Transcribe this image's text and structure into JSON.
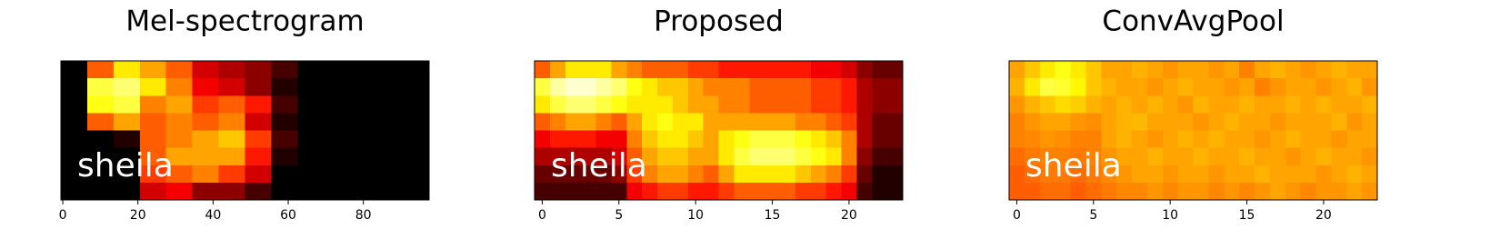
{
  "chart_data": [
    {
      "type": "heatmap",
      "title": "Mel-spectrogram",
      "annotation": "sheila",
      "colormap": "hot",
      "xlim": [
        -0.5,
        97.5
      ],
      "xticks": [
        0,
        20,
        40,
        60,
        80
      ],
      "values": [
        [
          0,
          0.5,
          0.7,
          0.6,
          0.5,
          0.3,
          0.25,
          0.2,
          0.1,
          0,
          0,
          0,
          0,
          0
        ],
        [
          0,
          0.8,
          0.85,
          0.7,
          0.55,
          0.35,
          0.3,
          0.2,
          0.05,
          0,
          0,
          0,
          0,
          0
        ],
        [
          0,
          0.75,
          0.8,
          0.55,
          0.6,
          0.45,
          0.5,
          0.4,
          0.1,
          0,
          0,
          0,
          0,
          0
        ],
        [
          0,
          0.5,
          0.6,
          0.5,
          0.55,
          0.5,
          0.55,
          0.3,
          0.05,
          0,
          0,
          0,
          0,
          0
        ],
        [
          0,
          0,
          0.05,
          0.5,
          0.55,
          0.6,
          0.65,
          0.45,
          0.1,
          0,
          0,
          0,
          0,
          0
        ],
        [
          0,
          0,
          0,
          0.5,
          0.6,
          0.6,
          0.6,
          0.4,
          0.05,
          0,
          0,
          0,
          0,
          0
        ],
        [
          0,
          0,
          0,
          0.45,
          0.5,
          0.55,
          0.45,
          0.3,
          0,
          0,
          0,
          0,
          0,
          0
        ],
        [
          0,
          0,
          0,
          0.3,
          0.35,
          0.2,
          0.2,
          0.1,
          0,
          0,
          0,
          0,
          0,
          0
        ]
      ]
    },
    {
      "type": "heatmap",
      "title": "Proposed",
      "annotation": "sheila",
      "colormap": "hot",
      "xlim": [
        -0.5,
        23.5
      ],
      "xticks": [
        0,
        5,
        10,
        15,
        20
      ],
      "values": [
        [
          0.5,
          0.6,
          0.7,
          0.7,
          0.7,
          0.6,
          0.55,
          0.5,
          0.5,
          0.5,
          0.45,
          0.45,
          0.4,
          0.4,
          0.4,
          0.4,
          0.4,
          0.4,
          0.35,
          0.35,
          0.3,
          0.2,
          0.15,
          0.15
        ],
        [
          0.8,
          0.9,
          0.95,
          0.95,
          0.9,
          0.85,
          0.75,
          0.7,
          0.65,
          0.65,
          0.6,
          0.55,
          0.55,
          0.55,
          0.5,
          0.5,
          0.5,
          0.5,
          0.45,
          0.45,
          0.4,
          0.25,
          0.2,
          0.2
        ],
        [
          0.7,
          0.8,
          0.85,
          0.85,
          0.8,
          0.75,
          0.7,
          0.7,
          0.7,
          0.65,
          0.6,
          0.6,
          0.55,
          0.55,
          0.5,
          0.5,
          0.5,
          0.5,
          0.45,
          0.45,
          0.4,
          0.25,
          0.2,
          0.2
        ],
        [
          0.5,
          0.55,
          0.6,
          0.6,
          0.55,
          0.5,
          0.6,
          0.7,
          0.75,
          0.7,
          0.7,
          0.6,
          0.6,
          0.6,
          0.6,
          0.6,
          0.6,
          0.55,
          0.55,
          0.5,
          0.45,
          0.25,
          0.15,
          0.15
        ],
        [
          0.35,
          0.4,
          0.4,
          0.4,
          0.35,
          0.35,
          0.55,
          0.65,
          0.7,
          0.7,
          0.65,
          0.6,
          0.7,
          0.75,
          0.8,
          0.8,
          0.8,
          0.75,
          0.7,
          0.65,
          0.55,
          0.25,
          0.15,
          0.15
        ],
        [
          0.25,
          0.25,
          0.25,
          0.25,
          0.25,
          0.3,
          0.5,
          0.6,
          0.65,
          0.65,
          0.6,
          0.6,
          0.7,
          0.8,
          0.85,
          0.85,
          0.85,
          0.8,
          0.75,
          0.7,
          0.55,
          0.2,
          0.1,
          0.1
        ],
        [
          0.15,
          0.15,
          0.15,
          0.15,
          0.15,
          0.2,
          0.45,
          0.55,
          0.6,
          0.6,
          0.55,
          0.5,
          0.6,
          0.7,
          0.7,
          0.7,
          0.7,
          0.65,
          0.6,
          0.55,
          0.45,
          0.15,
          0.05,
          0.05
        ],
        [
          0.1,
          0.1,
          0.1,
          0.1,
          0.1,
          0.1,
          0.35,
          0.4,
          0.45,
          0.45,
          0.4,
          0.4,
          0.45,
          0.5,
          0.5,
          0.5,
          0.5,
          0.45,
          0.45,
          0.4,
          0.35,
          0.1,
          0.05,
          0.05
        ]
      ]
    },
    {
      "type": "heatmap",
      "title": "ConvAvgPool",
      "annotation": "sheila",
      "colormap": "hot",
      "xlim": [
        -0.5,
        23.5
      ],
      "xticks": [
        0,
        5,
        10,
        15,
        20
      ],
      "values": [
        [
          0.6,
          0.65,
          0.7,
          0.75,
          0.7,
          0.65,
          0.6,
          0.6,
          0.62,
          0.6,
          0.58,
          0.6,
          0.6,
          0.58,
          0.6,
          0.55,
          0.6,
          0.62,
          0.6,
          0.58,
          0.6,
          0.62,
          0.6,
          0.6
        ],
        [
          0.62,
          0.7,
          0.8,
          0.78,
          0.72,
          0.65,
          0.62,
          0.6,
          0.6,
          0.58,
          0.6,
          0.62,
          0.6,
          0.6,
          0.58,
          0.6,
          0.55,
          0.58,
          0.6,
          0.6,
          0.58,
          0.6,
          0.62,
          0.58
        ],
        [
          0.58,
          0.62,
          0.65,
          0.68,
          0.66,
          0.62,
          0.6,
          0.62,
          0.6,
          0.62,
          0.6,
          0.58,
          0.62,
          0.6,
          0.6,
          0.62,
          0.6,
          0.6,
          0.62,
          0.6,
          0.62,
          0.6,
          0.6,
          0.62
        ],
        [
          0.55,
          0.58,
          0.6,
          0.6,
          0.58,
          0.57,
          0.6,
          0.62,
          0.63,
          0.6,
          0.6,
          0.6,
          0.58,
          0.6,
          0.62,
          0.6,
          0.6,
          0.58,
          0.6,
          0.6,
          0.6,
          0.62,
          0.58,
          0.6
        ],
        [
          0.55,
          0.56,
          0.58,
          0.57,
          0.55,
          0.55,
          0.6,
          0.62,
          0.6,
          0.58,
          0.6,
          0.62,
          0.6,
          0.62,
          0.6,
          0.6,
          0.58,
          0.6,
          0.62,
          0.6,
          0.6,
          0.58,
          0.6,
          0.6
        ],
        [
          0.52,
          0.54,
          0.55,
          0.55,
          0.54,
          0.55,
          0.58,
          0.6,
          0.6,
          0.62,
          0.6,
          0.6,
          0.62,
          0.6,
          0.6,
          0.62,
          0.6,
          0.6,
          0.58,
          0.6,
          0.62,
          0.6,
          0.6,
          0.58
        ],
        [
          0.5,
          0.52,
          0.54,
          0.54,
          0.52,
          0.54,
          0.56,
          0.58,
          0.6,
          0.6,
          0.58,
          0.6,
          0.6,
          0.58,
          0.6,
          0.6,
          0.62,
          0.6,
          0.6,
          0.6,
          0.58,
          0.6,
          0.62,
          0.6
        ],
        [
          0.5,
          0.5,
          0.52,
          0.52,
          0.5,
          0.52,
          0.54,
          0.56,
          0.56,
          0.58,
          0.56,
          0.58,
          0.58,
          0.56,
          0.58,
          0.56,
          0.58,
          0.6,
          0.58,
          0.56,
          0.58,
          0.58,
          0.6,
          0.58
        ]
      ]
    }
  ]
}
